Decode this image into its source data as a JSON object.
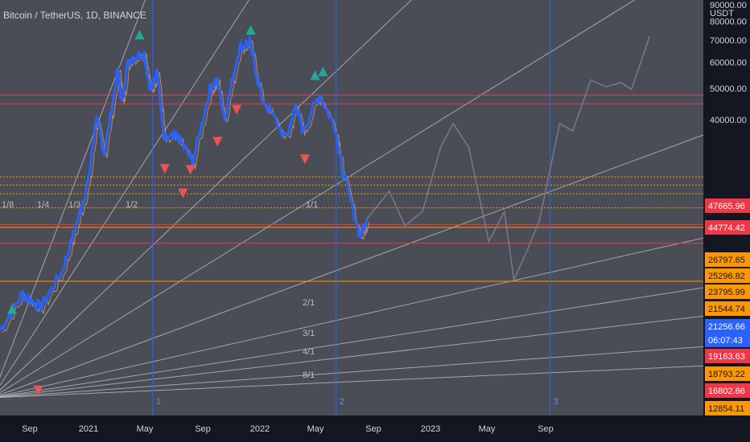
{
  "header": {
    "title": "Bitcoin / TetherUS, 1D, BINANCE"
  },
  "colors": {
    "background": "#131722",
    "panel": "#4a4d56",
    "axis_text": "#d1d4dc",
    "price_line": "#2962ff",
    "projection": "#787b86",
    "red_line": "#f23645",
    "orange_line": "#ff9800",
    "up_triangle": "#26a69a",
    "down_triangle": "#ef5350",
    "cycle_line": "#2962ff",
    "fan_line": "#b2b5be",
    "label_red": "#f23645",
    "label_orange": "#ff9800",
    "label_blue": "#2962ff"
  },
  "chart_data": {
    "type": "line",
    "title": "Bitcoin / TetherUS, 1D, BINANCE",
    "y_axis_unit": "USDT",
    "x_tick_labels": [
      "Sep",
      "2021",
      "May",
      "Sep",
      "2022",
      "May",
      "Sep",
      "2023",
      "May",
      "Sep"
    ],
    "y_tick_labels": [
      "90000.00",
      "80000.00",
      "70000.00",
      "60000.00",
      "50000.00",
      "40000.00"
    ],
    "y_ticks_values": [
      90000,
      80000,
      70000,
      60000,
      50000,
      40000
    ],
    "price_labels": [
      {
        "value": "47665.96",
        "style": "red"
      },
      {
        "value": "44774.42",
        "style": "red"
      },
      {
        "value": "26797.65",
        "style": "orange"
      },
      {
        "value": "25296.82",
        "style": "orange"
      },
      {
        "value": "23795.99",
        "style": "orange"
      },
      {
        "value": "21544.74",
        "style": "orange"
      },
      {
        "value": "21256.66",
        "style": "blue"
      },
      {
        "value": "06:07:43",
        "style": "blue"
      },
      {
        "value": "19163.63",
        "style": "red"
      },
      {
        "value": "18793.22",
        "style": "orange"
      },
      {
        "value": "16802.86",
        "style": "red"
      },
      {
        "value": "12854.11",
        "style": "orange"
      }
    ],
    "horizontal_levels": [
      {
        "price": 47665.96,
        "style": "red"
      },
      {
        "price": 44774.42,
        "style": "red"
      },
      {
        "price": 26797.65,
        "style": "orange-dotted"
      },
      {
        "price": 25296.82,
        "style": "orange-dotted"
      },
      {
        "price": 23795.99,
        "style": "orange-dotted"
      },
      {
        "price": 21544.74,
        "style": "orange-dotted"
      },
      {
        "price": 19163.63,
        "style": "red"
      },
      {
        "price": 18793.22,
        "style": "orange"
      },
      {
        "price": 16802.86,
        "style": "red"
      },
      {
        "price": 12854.11,
        "style": "orange"
      }
    ],
    "cycle_markers": [
      {
        "label": "1",
        "date": "2021-05"
      },
      {
        "label": "2",
        "date": "2022-05"
      },
      {
        "label": "3",
        "date": "2023-07"
      }
    ],
    "gann_fan_labels": [
      "1/8",
      "1/4",
      "1/3",
      "1/2",
      "1/1",
      "2/1",
      "3/1",
      "4/1",
      "8/1"
    ],
    "price_series": [
      [
        "2020-07-01",
        9100
      ],
      [
        "2020-08-15",
        11800
      ],
      [
        "2020-09-20",
        10700
      ],
      [
        "2020-11-01",
        13700
      ],
      [
        "2020-12-01",
        19300
      ],
      [
        "2020-12-25",
        26500
      ],
      [
        "2021-01-08",
        40500
      ],
      [
        "2021-01-25",
        31800
      ],
      [
        "2021-02-21",
        57500
      ],
      [
        "2021-02-28",
        45000
      ],
      [
        "2021-03-13",
        61200
      ],
      [
        "2021-04-14",
        64500
      ],
      [
        "2021-04-25",
        49000
      ],
      [
        "2021-05-10",
        57000
      ],
      [
        "2021-05-23",
        34800
      ],
      [
        "2021-06-20",
        35500
      ],
      [
        "2021-07-20",
        29800
      ],
      [
        "2021-08-23",
        49800
      ],
      [
        "2021-09-07",
        52800
      ],
      [
        "2021-09-21",
        40700
      ],
      [
        "2021-10-20",
        66500
      ],
      [
        "2021-11-10",
        68800
      ],
      [
        "2021-12-04",
        47000
      ],
      [
        "2022-01-22",
        35000
      ],
      [
        "2022-02-10",
        44500
      ],
      [
        "2022-02-24",
        37000
      ],
      [
        "2022-03-29",
        48000
      ],
      [
        "2022-04-30",
        37600
      ],
      [
        "2022-05-12",
        28800
      ],
      [
        "2022-06-18",
        17600
      ],
      [
        "2022-07-01",
        19900
      ]
    ],
    "projection_series": [
      [
        "2022-07-01",
        19900
      ],
      [
        "2022-08-15",
        24200
      ],
      [
        "2022-09-15",
        19000
      ],
      [
        "2022-10-20",
        21000
      ],
      [
        "2022-11-25",
        33000
      ],
      [
        "2022-12-20",
        39000
      ],
      [
        "2023-01-20",
        33000
      ],
      [
        "2023-03-01",
        17000
      ],
      [
        "2023-04-01",
        21000
      ],
      [
        "2023-04-20",
        13000
      ],
      [
        "2023-05-15",
        15800
      ],
      [
        "2023-06-10",
        19800
      ],
      [
        "2023-07-20",
        39000
      ],
      [
        "2023-08-15",
        37000
      ],
      [
        "2023-09-20",
        53000
      ],
      [
        "2023-10-20",
        50500
      ],
      [
        "2023-11-20",
        52000
      ],
      [
        "2023-12-10",
        49500
      ],
      [
        "2024-01-15",
        72000
      ]
    ],
    "up_triangles": [
      [
        "2020-07-25",
        10500
      ],
      [
        "2021-04-05",
        72500
      ],
      [
        "2021-11-12",
        75000
      ],
      [
        "2022-03-20",
        54500
      ],
      [
        "2022-04-05",
        56000
      ]
    ],
    "down_triangles": [
      [
        "2020-09-15",
        6000
      ],
      [
        "2021-05-25",
        28500
      ],
      [
        "2021-06-30",
        24000
      ],
      [
        "2021-07-15",
        28300
      ],
      [
        "2021-09-07",
        34500
      ],
      [
        "2021-10-15",
        43200
      ],
      [
        "2022-02-28",
        30500
      ]
    ],
    "ylim": [
      5000,
      93000
    ],
    "xlim": [
      "2020-07-01",
      "2024-05-01"
    ],
    "y_scale": "log",
    "grid": false
  }
}
